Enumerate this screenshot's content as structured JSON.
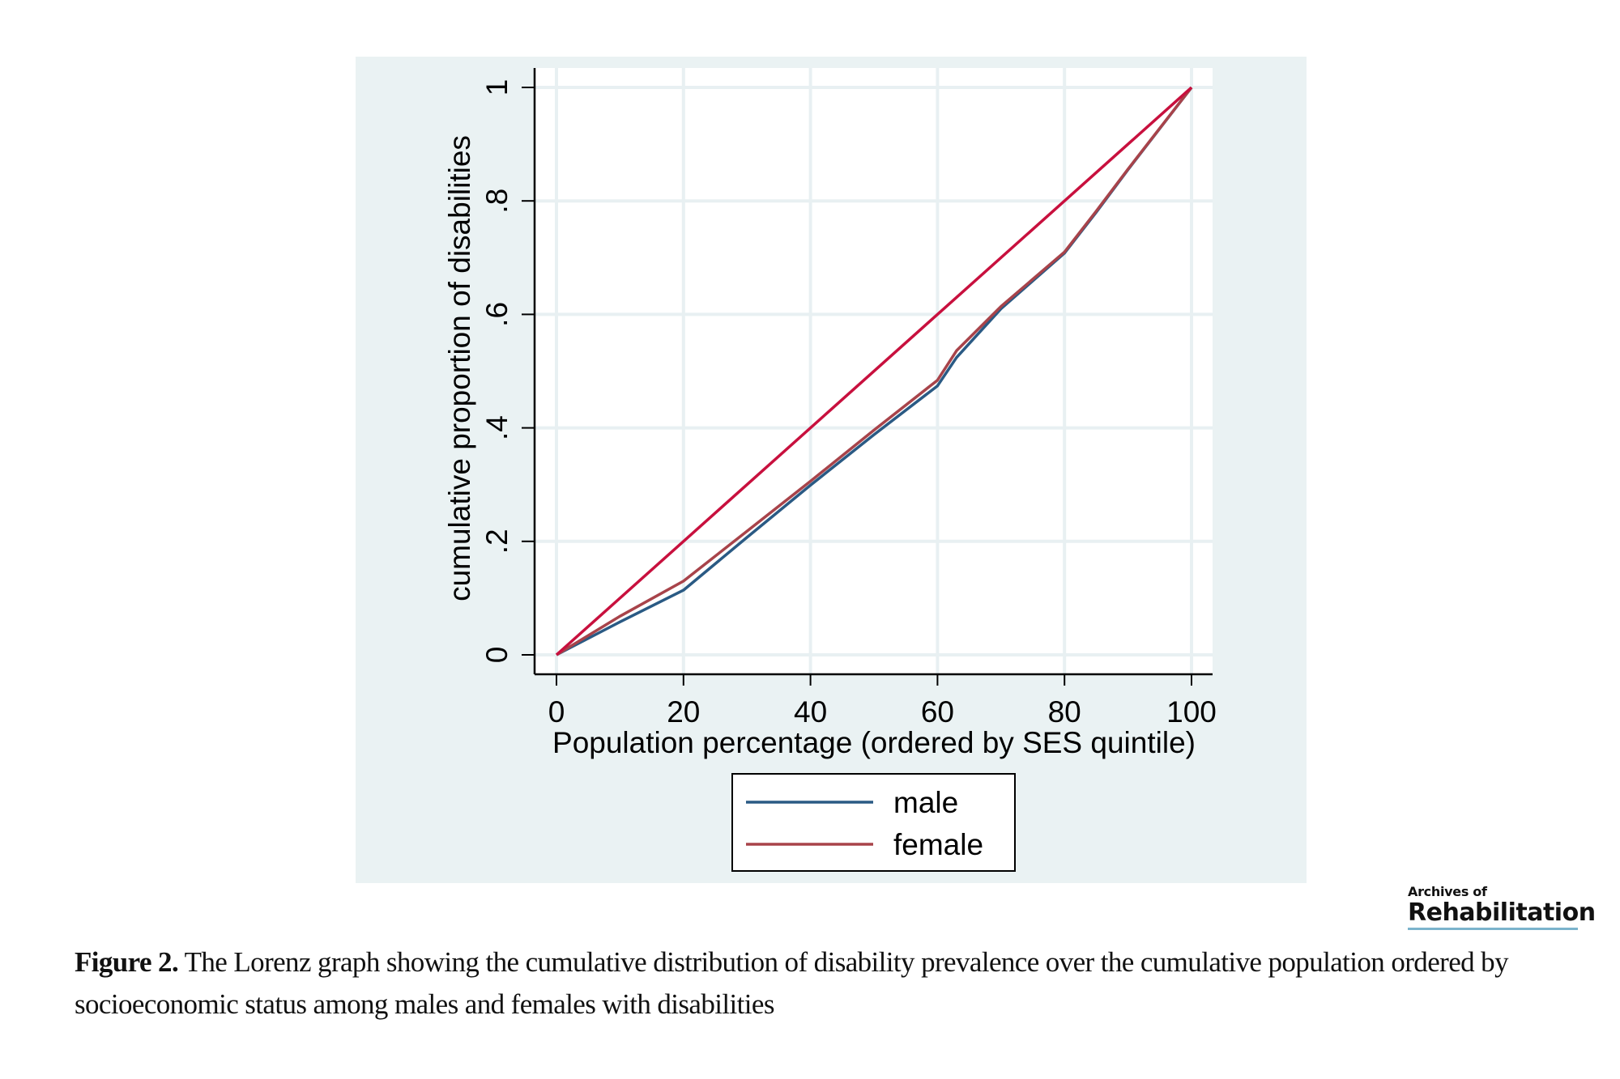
{
  "chart_data": {
    "type": "line",
    "title": "",
    "xlabel": "Population percentage (ordered by SES quintile)",
    "ylabel": "cumulative proportion of disabilities",
    "xlim": [
      0,
      100
    ],
    "ylim": [
      0,
      1
    ],
    "x_ticks": [
      0,
      20,
      40,
      60,
      80,
      100
    ],
    "x_tick_labels": [
      "0",
      "20",
      "40",
      "60",
      "80",
      "100"
    ],
    "y_ticks": [
      0,
      0.2,
      0.4,
      0.6,
      0.8,
      1
    ],
    "y_tick_labels": [
      "0",
      ".2",
      ".4",
      ".6",
      ".8",
      "1"
    ],
    "grid": true,
    "legend_placement": "bottom-center",
    "series": [
      {
        "name": "equality line",
        "in_legend": false,
        "color": "#c8103e",
        "x": [
          0,
          100
        ],
        "y": [
          0,
          1
        ]
      },
      {
        "name": "male",
        "in_legend": true,
        "color": "#2a5a84",
        "x": [
          0,
          10,
          20,
          30,
          40,
          50,
          60,
          63,
          70,
          80,
          85,
          90,
          100
        ],
        "y": [
          0,
          0.058,
          0.114,
          0.207,
          0.299,
          0.388,
          0.474,
          0.524,
          0.61,
          0.708,
          0.78,
          0.855,
          1
        ]
      },
      {
        "name": "female",
        "in_legend": true,
        "color": "#a8434a",
        "x": [
          0,
          10,
          20,
          30,
          40,
          50,
          60,
          63,
          70,
          80,
          85,
          90,
          100
        ],
        "y": [
          0,
          0.068,
          0.13,
          0.218,
          0.306,
          0.396,
          0.484,
          0.536,
          0.614,
          0.71,
          0.782,
          0.856,
          1
        ]
      }
    ]
  },
  "colors": {
    "panel_bg": "#eaf2f3",
    "plot_bg": "#ffffff",
    "grid": "#e8f0f2",
    "axis": "#000000"
  },
  "legend": {
    "items": [
      {
        "label": "male",
        "color": "#2a5a84"
      },
      {
        "label": "female",
        "color": "#a8434a"
      }
    ]
  },
  "caption": {
    "label": "Figure 2.",
    "text": " The Lorenz graph showing the cumulative distribution of disability prevalence over the cumulative population ordered by socioeconomic status among males and females with disabilities"
  },
  "logo": {
    "line1": "Archives of",
    "line2": "Rehabilitation"
  }
}
